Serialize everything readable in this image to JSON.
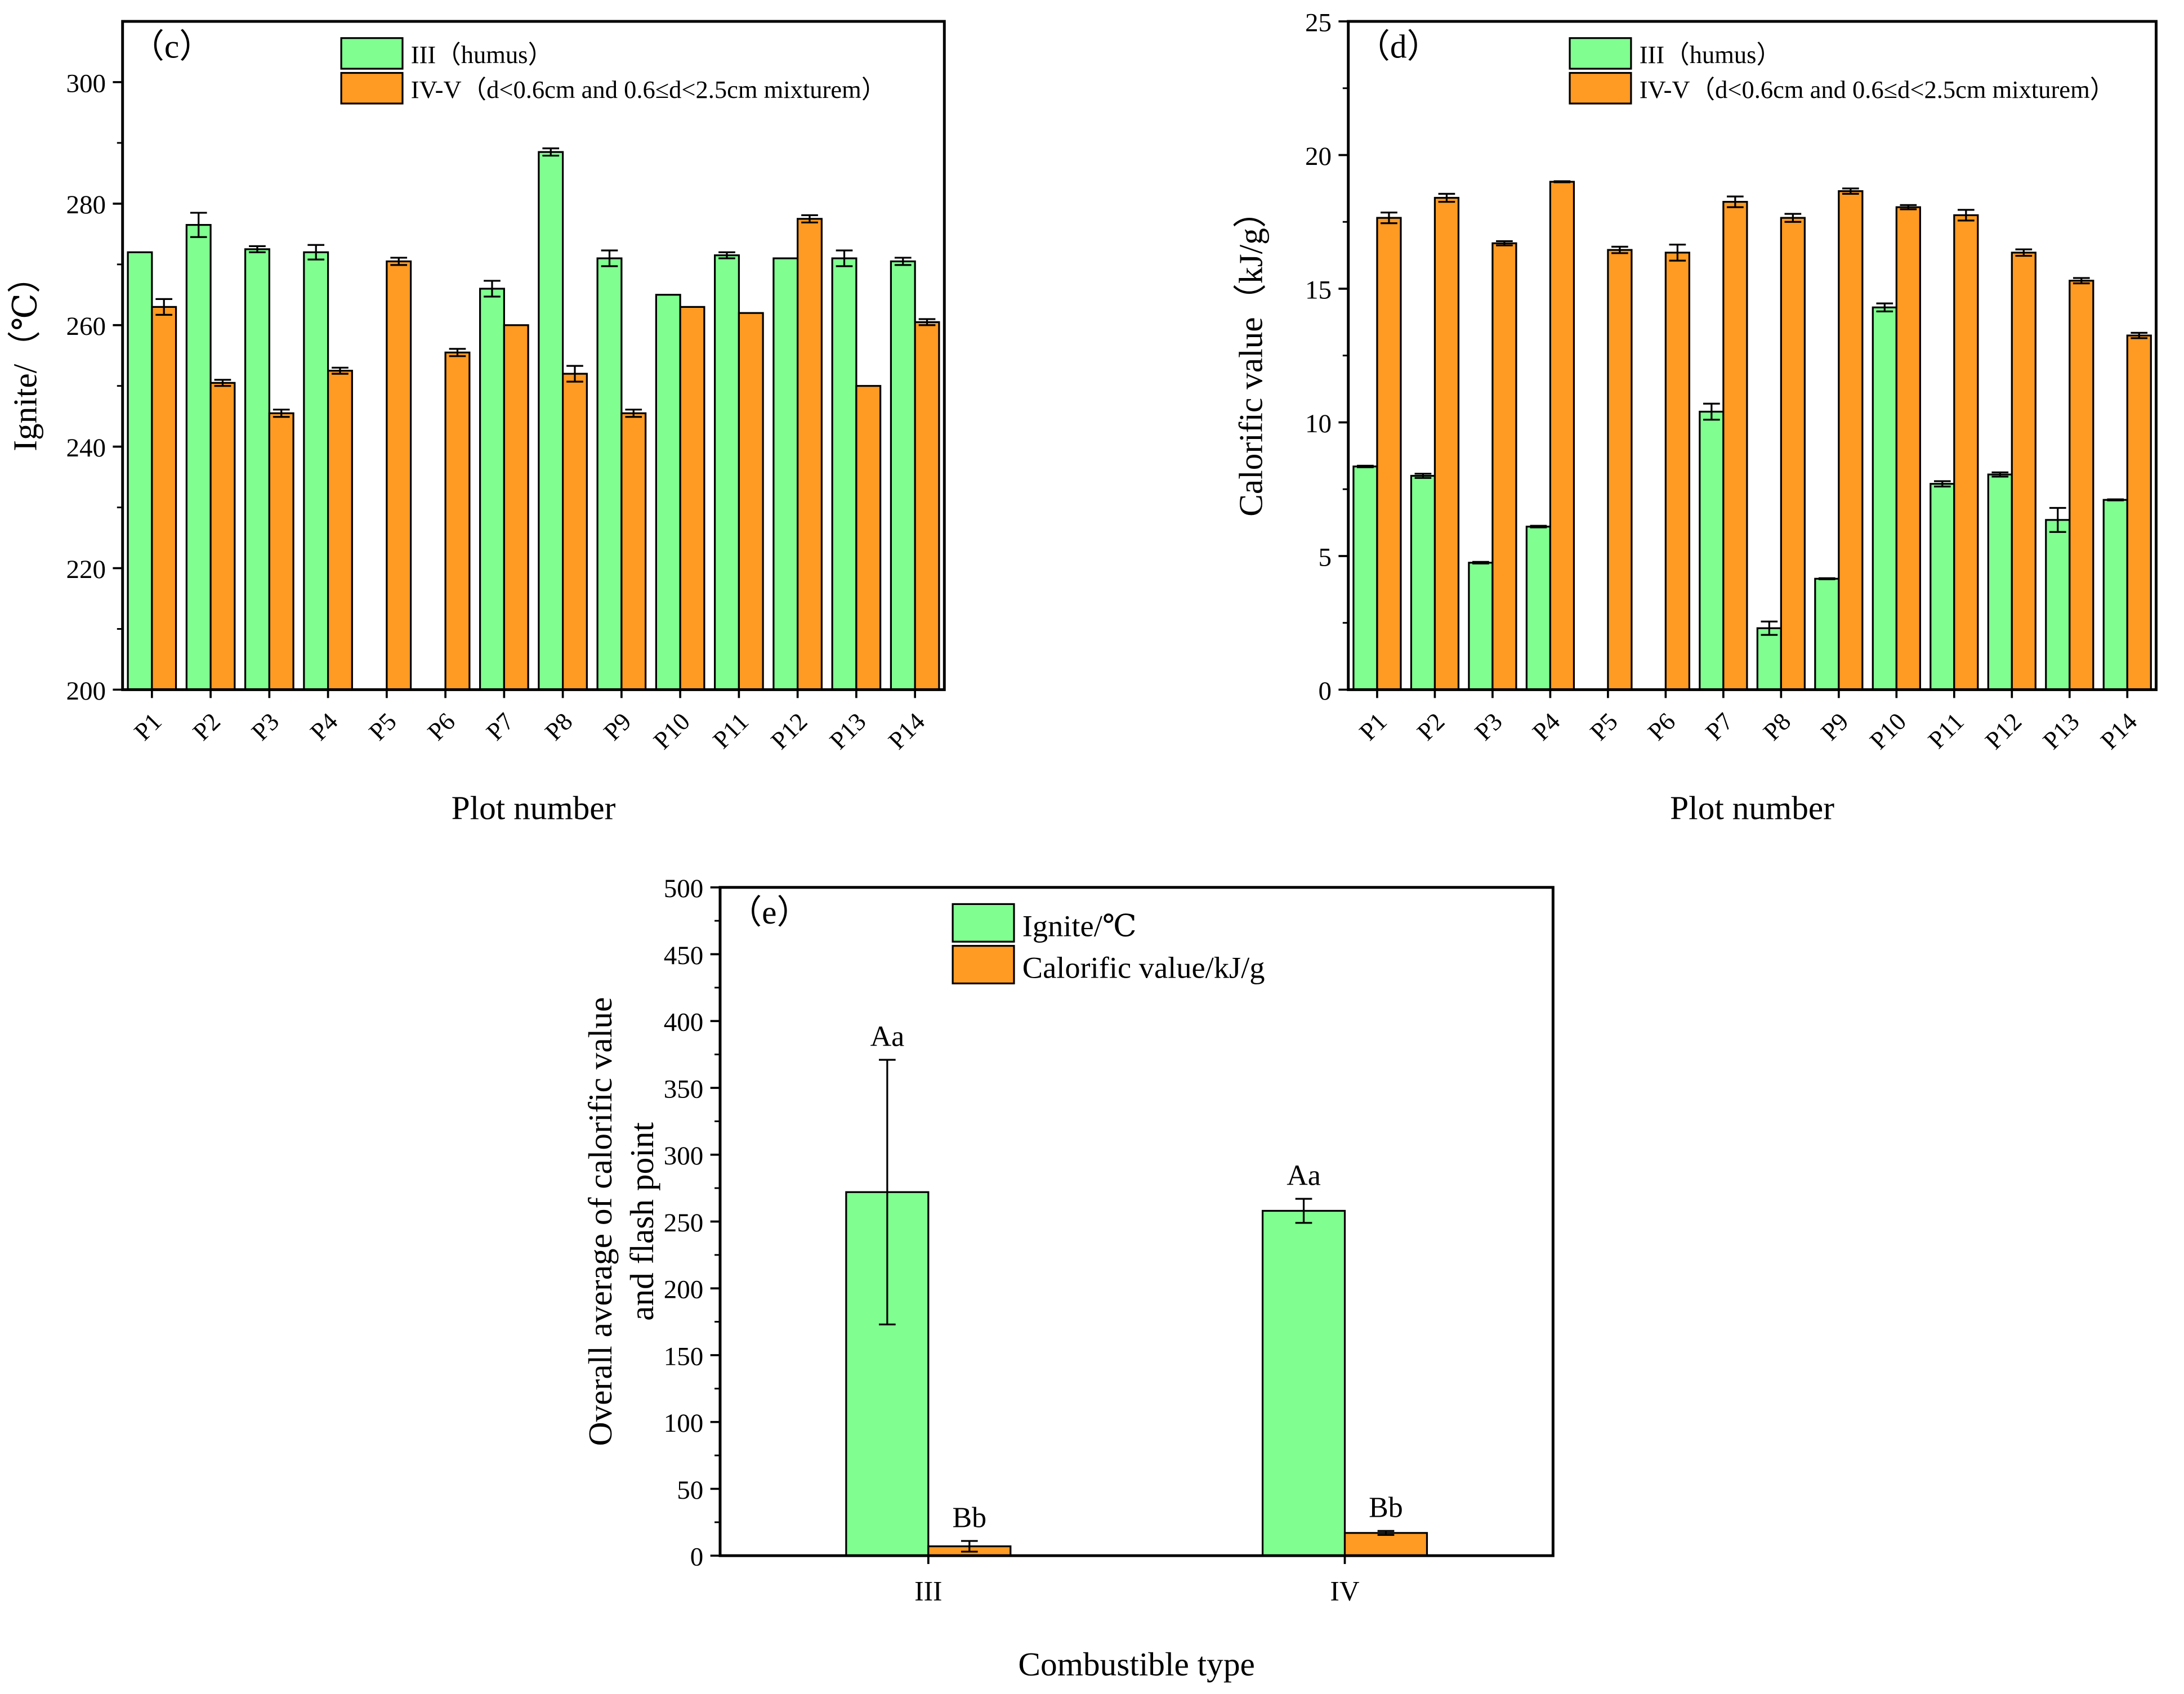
{
  "colors": {
    "green": "#80FF90",
    "orange": "#FF9A22"
  },
  "chart_data": [
    {
      "type": "bar",
      "panel_label": "（c）",
      "xlabel": "Plot number",
      "ylabel": "Ignite/（℃）",
      "ylim": [
        200,
        310
      ],
      "yticks": [
        200,
        220,
        240,
        260,
        280,
        300
      ],
      "legend_placement": "top-center",
      "categories": [
        "P1",
        "P2",
        "P3",
        "P4",
        "P5",
        "P6",
        "P7",
        "P8",
        "P9",
        "P10",
        "P11",
        "P12",
        "P13",
        "P14"
      ],
      "series": [
        {
          "name": "III（humus）",
          "color": "#80FF90",
          "values": [
            272,
            276.5,
            272.5,
            272,
            null,
            null,
            266,
            288.5,
            271,
            265,
            271.5,
            271,
            271,
            270.5
          ],
          "errors": [
            0,
            2,
            0.5,
            1.2,
            null,
            null,
            1.3,
            0.6,
            1.3,
            0,
            0.5,
            0,
            1.3,
            0.6
          ]
        },
        {
          "name": "IV-V（d<0.6cm and 0.6≤d<2.5cm mixturem）",
          "color": "#FF9A22",
          "values": [
            263,
            250.5,
            245.5,
            252.5,
            270.5,
            255.5,
            260,
            252,
            245.5,
            263,
            262,
            277.5,
            250,
            260.5
          ],
          "errors": [
            1.3,
            0.5,
            0.6,
            0.5,
            0.6,
            0.6,
            0,
            1.3,
            0.6,
            0,
            0,
            0.6,
            0,
            0.5
          ]
        }
      ]
    },
    {
      "type": "bar",
      "panel_label": "（d）",
      "xlabel": "Plot number",
      "ylabel": "Calorific value（kJ/g）",
      "ylim": [
        0,
        25
      ],
      "yticks": [
        0,
        5,
        10,
        15,
        20,
        25
      ],
      "legend_placement": "top-center",
      "categories": [
        "P1",
        "P2",
        "P3",
        "P4",
        "P5",
        "P6",
        "P7",
        "P8",
        "P9",
        "P10",
        "P11",
        "P12",
        "P13",
        "P14"
      ],
      "series": [
        {
          "name": "III（humus）",
          "color": "#80FF90",
          "values": [
            8.35,
            8.0,
            4.75,
            6.1,
            null,
            null,
            10.4,
            2.3,
            4.15,
            14.3,
            7.7,
            8.05,
            6.35,
            7.1
          ],
          "errors": [
            0.03,
            0.08,
            0.03,
            0.03,
            null,
            null,
            0.3,
            0.25,
            0.02,
            0.15,
            0.1,
            0.08,
            0.45,
            0.02
          ]
        },
        {
          "name": "IV-V（d<0.6cm and 0.6≤d<2.5cm mixturem）",
          "color": "#FF9A22",
          "values": [
            17.65,
            18.4,
            16.7,
            19.0,
            16.45,
            16.35,
            18.25,
            17.65,
            18.65,
            18.05,
            17.75,
            16.35,
            15.3,
            13.25
          ],
          "errors": [
            0.2,
            0.15,
            0.08,
            0.02,
            0.12,
            0.3,
            0.2,
            0.15,
            0.1,
            0.08,
            0.2,
            0.12,
            0.1,
            0.1
          ]
        }
      ]
    },
    {
      "type": "bar",
      "panel_label": "（e）",
      "xlabel": "Combustible type",
      "ylabel": "Overall average of calorific value\nand flash point",
      "ylim": [
        0,
        500
      ],
      "yticks": [
        0,
        50,
        100,
        150,
        200,
        250,
        300,
        350,
        400,
        450,
        500
      ],
      "legend_placement": "top-center",
      "categories": [
        "III",
        "IV"
      ],
      "series": [
        {
          "name": "Ignite/℃",
          "color": "#80FF90",
          "values": [
            272,
            258
          ],
          "errors": [
            99,
            9
          ],
          "annotations": [
            "Aa",
            "Aa"
          ]
        },
        {
          "name": "Calorific value/kJ/g",
          "color": "#FF9A22",
          "values": [
            7,
            17
          ],
          "errors": [
            4,
            1.5
          ],
          "annotations": [
            "Bb",
            "Bb"
          ]
        }
      ]
    }
  ]
}
